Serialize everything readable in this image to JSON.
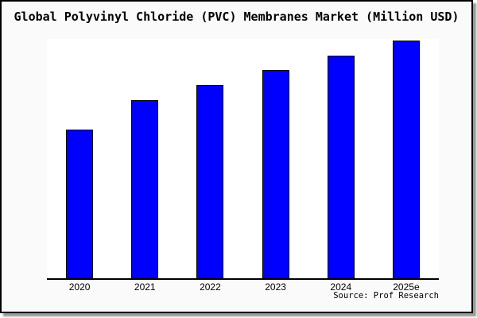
{
  "colors": {
    "bar": "#0000ff",
    "bar-border": "#000000",
    "figure-bg": "#fafafa",
    "plot-bg": "#ffffff",
    "axis": "#000000",
    "frame-border": "#000000",
    "shadow": "#999999",
    "text": "#000000"
  },
  "chart_data": {
    "type": "bar",
    "title": "Global Polyvinyl Chloride (PVC) Membranes Market (Million USD)",
    "categories": [
      "2020",
      "2021",
      "2022",
      "2023",
      "2024",
      "2025e"
    ],
    "values": [
      62.5,
      74.9,
      81.3,
      87.6,
      93.6,
      100
    ],
    "value_basis": "relative bar height, percent of tallest bar (2025e); chart displays no y-axis scale",
    "unit_from_title": "Million USD",
    "xlabel": "",
    "ylabel": "",
    "y_axis_ticks": "none",
    "gridlines": false,
    "legend": "none",
    "bar_color": "#0000ff",
    "bar_border_color": "#000000",
    "source_note": "Source: Prof Research"
  }
}
